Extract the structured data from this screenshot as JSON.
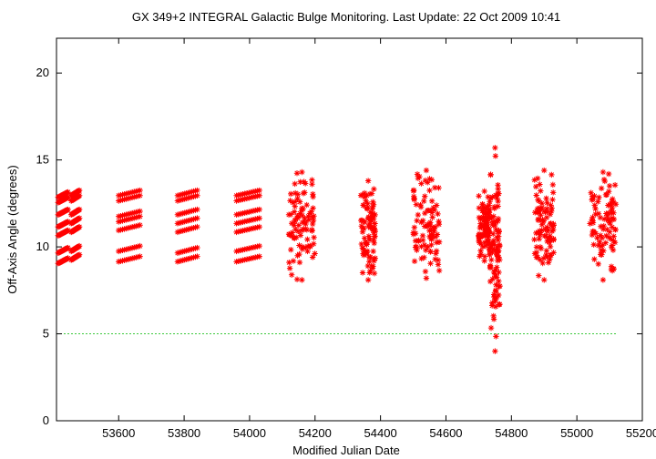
{
  "chart_data": {
    "type": "scatter",
    "title": "GX 349+2   INTEGRAL Galactic Bulge Monitoring.  Last Update: 22 Oct 2009 10:41",
    "xlabel": "Modified Julian Date",
    "ylabel": "Off-Axis Angle (degrees)",
    "xlim": [
      53410,
      55200
    ],
    "ylim": [
      0,
      22
    ],
    "xticks": [
      53600,
      53800,
      54000,
      54200,
      54400,
      54600,
      54800,
      55000,
      55200
    ],
    "yticks": [
      0,
      5,
      10,
      15,
      20
    ],
    "grid": false,
    "legend": "none",
    "marker": "asterisk",
    "series_color": "#ff0000",
    "reference_line": {
      "y": 5,
      "x": [
        53410,
        55120
      ],
      "color": "#3cc83c",
      "style": "dashed"
    },
    "visits": [
      {
        "x": [
          53415,
          53445
        ],
        "levels": [
          9.2,
          9.8,
          10.8,
          11.3,
          12.0,
          12.7,
          13.0
        ]
      },
      {
        "x": [
          53455,
          53480
        ],
        "levels": [
          9.4,
          9.9,
          11.0,
          11.5,
          12.0,
          12.8,
          13.1
        ]
      },
      {
        "x": [
          53600,
          53665
        ],
        "levels": [
          9.3,
          9.9,
          11.1,
          11.6,
          11.9,
          12.8,
          13.1
        ]
      },
      {
        "x": [
          53780,
          53840
        ],
        "levels": [
          9.3,
          9.8,
          11.0,
          11.5,
          12.0,
          12.8,
          13.1
        ]
      },
      {
        "x": [
          53960,
          54030
        ],
        "levels": [
          9.3,
          9.9,
          11.0,
          11.5,
          12.0,
          12.8,
          13.1
        ]
      },
      {
        "x": [
          54120,
          54200
        ],
        "range": [
          8.1,
          14.3
        ]
      },
      {
        "x": [
          54340,
          54385
        ],
        "range": [
          8.1,
          13.8
        ]
      },
      {
        "x": [
          54500,
          54580
        ],
        "range": [
          8.2,
          14.4
        ]
      },
      {
        "x": [
          54700,
          54735
        ],
        "range": [
          9.2,
          13.2
        ]
      },
      {
        "x": [
          54735,
          54765
        ],
        "range": [
          4.0,
          15.7
        ]
      },
      {
        "x": [
          54870,
          54930
        ],
        "range": [
          8.1,
          14.4
        ]
      },
      {
        "x": [
          55040,
          55120
        ],
        "range": [
          8.1,
          14.3
        ]
      }
    ]
  }
}
